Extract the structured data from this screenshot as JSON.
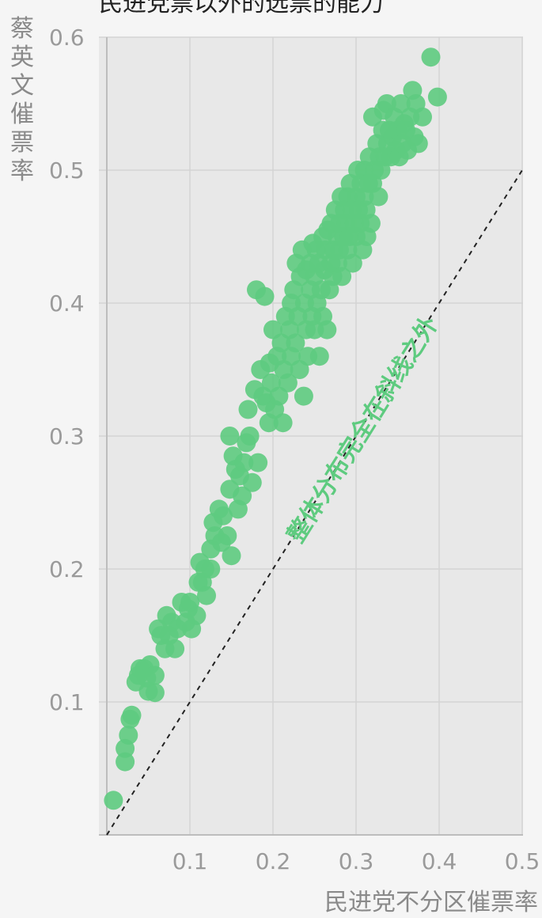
{
  "chart_data": {
    "type": "scatter",
    "title": "民进党票以外的选票的能力",
    "xlabel": "民进党不分区催票率",
    "ylabel": "蔡英文催票率",
    "xlim": [
      0,
      0.5
    ],
    "ylim": [
      0,
      0.6
    ],
    "x_ticks": [
      "0.1",
      "0.2",
      "0.3",
      "0.4",
      "0.5"
    ],
    "y_ticks": [
      "0.1",
      "0.2",
      "0.3",
      "0.4",
      "0.5",
      "0.6"
    ],
    "grid": true,
    "reference_line": {
      "style": "dashed",
      "from": [
        0,
        0
      ],
      "to": [
        0.5,
        0.5
      ]
    },
    "annotation": "整体分布完全在斜线之外",
    "colors": {
      "points": "#5ecb7f",
      "plot_bg": "#e8e8e8",
      "page_bg": "#f5f5f5",
      "grid": "#d4d4d4",
      "line": "#222222"
    },
    "points": [
      [
        0.008,
        0.026
      ],
      [
        0.022,
        0.055
      ],
      [
        0.022,
        0.065
      ],
      [
        0.026,
        0.075
      ],
      [
        0.028,
        0.087
      ],
      [
        0.03,
        0.09
      ],
      [
        0.035,
        0.115
      ],
      [
        0.038,
        0.12
      ],
      [
        0.04,
        0.125
      ],
      [
        0.045,
        0.125
      ],
      [
        0.048,
        0.118
      ],
      [
        0.05,
        0.108
      ],
      [
        0.052,
        0.128
      ],
      [
        0.058,
        0.107
      ],
      [
        0.058,
        0.12
      ],
      [
        0.062,
        0.155
      ],
      [
        0.065,
        0.15
      ],
      [
        0.07,
        0.14
      ],
      [
        0.072,
        0.165
      ],
      [
        0.075,
        0.15
      ],
      [
        0.078,
        0.16
      ],
      [
        0.082,
        0.14
      ],
      [
        0.085,
        0.155
      ],
      [
        0.09,
        0.175
      ],
      [
        0.095,
        0.16
      ],
      [
        0.098,
        0.17
      ],
      [
        0.1,
        0.175
      ],
      [
        0.102,
        0.155
      ],
      [
        0.108,
        0.165
      ],
      [
        0.11,
        0.19
      ],
      [
        0.112,
        0.205
      ],
      [
        0.115,
        0.19
      ],
      [
        0.118,
        0.2
      ],
      [
        0.12,
        0.18
      ],
      [
        0.125,
        0.2
      ],
      [
        0.125,
        0.215
      ],
      [
        0.128,
        0.235
      ],
      [
        0.13,
        0.225
      ],
      [
        0.135,
        0.245
      ],
      [
        0.138,
        0.22
      ],
      [
        0.14,
        0.24
      ],
      [
        0.145,
        0.225
      ],
      [
        0.148,
        0.26
      ],
      [
        0.148,
        0.3
      ],
      [
        0.15,
        0.21
      ],
      [
        0.152,
        0.285
      ],
      [
        0.155,
        0.275
      ],
      [
        0.158,
        0.245
      ],
      [
        0.16,
        0.27
      ],
      [
        0.163,
        0.255
      ],
      [
        0.165,
        0.28
      ],
      [
        0.168,
        0.295
      ],
      [
        0.17,
        0.32
      ],
      [
        0.172,
        0.3
      ],
      [
        0.175,
        0.265
      ],
      [
        0.178,
        0.335
      ],
      [
        0.18,
        0.41
      ],
      [
        0.182,
        0.28
      ],
      [
        0.185,
        0.35
      ],
      [
        0.188,
        0.33
      ],
      [
        0.19,
        0.405
      ],
      [
        0.192,
        0.325
      ],
      [
        0.195,
        0.31
      ],
      [
        0.196,
        0.355
      ],
      [
        0.198,
        0.34
      ],
      [
        0.2,
        0.38
      ],
      [
        0.202,
        0.32
      ],
      [
        0.205,
        0.36
      ],
      [
        0.207,
        0.33
      ],
      [
        0.21,
        0.37
      ],
      [
        0.212,
        0.31
      ],
      [
        0.213,
        0.35
      ],
      [
        0.215,
        0.39
      ],
      [
        0.218,
        0.34
      ],
      [
        0.22,
        0.38
      ],
      [
        0.222,
        0.36
      ],
      [
        0.222,
        0.4
      ],
      [
        0.225,
        0.41
      ],
      [
        0.227,
        0.37
      ],
      [
        0.228,
        0.43
      ],
      [
        0.23,
        0.39
      ],
      [
        0.232,
        0.35
      ],
      [
        0.233,
        0.42
      ],
      [
        0.235,
        0.44
      ],
      [
        0.237,
        0.33
      ],
      [
        0.238,
        0.4
      ],
      [
        0.24,
        0.38
      ],
      [
        0.24,
        0.425
      ],
      [
        0.242,
        0.36
      ],
      [
        0.245,
        0.43
      ],
      [
        0.245,
        0.41
      ],
      [
        0.247,
        0.39
      ],
      [
        0.248,
        0.445
      ],
      [
        0.25,
        0.42
      ],
      [
        0.25,
        0.38
      ],
      [
        0.252,
        0.44
      ],
      [
        0.253,
        0.4
      ],
      [
        0.255,
        0.43
      ],
      [
        0.256,
        0.36
      ],
      [
        0.258,
        0.41
      ],
      [
        0.26,
        0.45
      ],
      [
        0.26,
        0.39
      ],
      [
        0.262,
        0.425
      ],
      [
        0.263,
        0.44
      ],
      [
        0.265,
        0.38
      ],
      [
        0.266,
        0.455
      ],
      [
        0.268,
        0.41
      ],
      [
        0.27,
        0.43
      ],
      [
        0.27,
        0.46
      ],
      [
        0.272,
        0.42
      ],
      [
        0.273,
        0.44
      ],
      [
        0.275,
        0.47
      ],
      [
        0.277,
        0.45
      ],
      [
        0.278,
        0.43
      ],
      [
        0.28,
        0.46
      ],
      [
        0.28,
        0.44
      ],
      [
        0.282,
        0.48
      ],
      [
        0.283,
        0.42
      ],
      [
        0.285,
        0.45
      ],
      [
        0.286,
        0.47
      ],
      [
        0.288,
        0.46
      ],
      [
        0.29,
        0.44
      ],
      [
        0.29,
        0.48
      ],
      [
        0.292,
        0.45
      ],
      [
        0.293,
        0.49
      ],
      [
        0.295,
        0.47
      ],
      [
        0.296,
        0.43
      ],
      [
        0.298,
        0.46
      ],
      [
        0.3,
        0.48
      ],
      [
        0.3,
        0.45
      ],
      [
        0.302,
        0.5
      ],
      [
        0.303,
        0.47
      ],
      [
        0.305,
        0.46
      ],
      [
        0.306,
        0.49
      ],
      [
        0.308,
        0.44
      ],
      [
        0.31,
        0.48
      ],
      [
        0.31,
        0.5
      ],
      [
        0.312,
        0.47
      ],
      [
        0.313,
        0.45
      ],
      [
        0.315,
        0.49
      ],
      [
        0.316,
        0.51
      ],
      [
        0.318,
        0.46
      ],
      [
        0.32,
        0.49
      ],
      [
        0.32,
        0.54
      ],
      [
        0.322,
        0.5
      ],
      [
        0.325,
        0.52
      ],
      [
        0.327,
        0.48
      ],
      [
        0.328,
        0.51
      ],
      [
        0.33,
        0.5
      ],
      [
        0.332,
        0.53
      ],
      [
        0.333,
        0.545
      ],
      [
        0.335,
        0.51
      ],
      [
        0.337,
        0.55
      ],
      [
        0.338,
        0.52
      ],
      [
        0.34,
        0.53
      ],
      [
        0.342,
        0.51
      ],
      [
        0.344,
        0.525
      ],
      [
        0.346,
        0.54
      ],
      [
        0.348,
        0.515
      ],
      [
        0.35,
        0.53
      ],
      [
        0.352,
        0.51
      ],
      [
        0.354,
        0.55
      ],
      [
        0.356,
        0.52
      ],
      [
        0.358,
        0.535
      ],
      [
        0.36,
        0.53
      ],
      [
        0.362,
        0.515
      ],
      [
        0.365,
        0.54
      ],
      [
        0.368,
        0.56
      ],
      [
        0.37,
        0.525
      ],
      [
        0.372,
        0.55
      ],
      [
        0.375,
        0.52
      ],
      [
        0.38,
        0.54
      ],
      [
        0.39,
        0.585
      ],
      [
        0.398,
        0.555
      ]
    ]
  }
}
